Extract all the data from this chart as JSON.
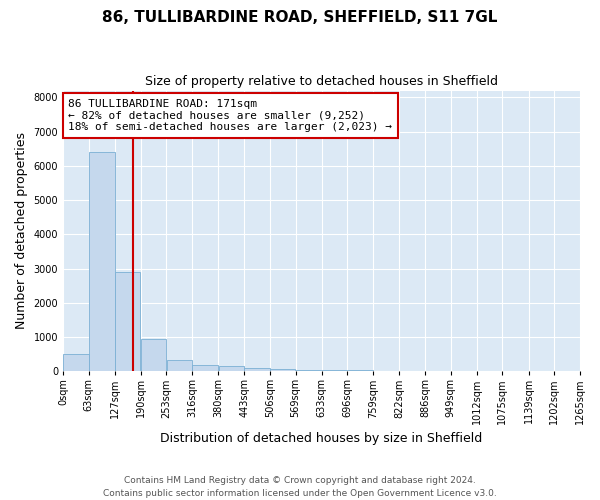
{
  "title": "86, TULLIBARDINE ROAD, SHEFFIELD, S11 7GL",
  "subtitle": "Size of property relative to detached houses in Sheffield",
  "xlabel": "Distribution of detached houses by size in Sheffield",
  "ylabel": "Number of detached properties",
  "bin_labels": [
    "0sqm",
    "63sqm",
    "127sqm",
    "190sqm",
    "253sqm",
    "316sqm",
    "380sqm",
    "443sqm",
    "506sqm",
    "569sqm",
    "633sqm",
    "696sqm",
    "759sqm",
    "822sqm",
    "886sqm",
    "949sqm",
    "1012sqm",
    "1075sqm",
    "1139sqm",
    "1202sqm",
    "1265sqm"
  ],
  "bin_edges": [
    0,
    63,
    127,
    190,
    253,
    316,
    380,
    443,
    506,
    569,
    633,
    696,
    759,
    822,
    886,
    949,
    1012,
    1075,
    1139,
    1202,
    1265
  ],
  "bar_heights": [
    500,
    6400,
    2900,
    950,
    340,
    195,
    145,
    95,
    65,
    50,
    38,
    28,
    20,
    14,
    10,
    7,
    5,
    3,
    2,
    1
  ],
  "bar_color": "#c5d8ed",
  "bar_edge_color": "#7bafd4",
  "property_size": 171,
  "vline_color": "#cc0000",
  "vline_x": 171,
  "annotation_line1": "86 TULLIBARDINE ROAD: 171sqm",
  "annotation_line2": "← 82% of detached houses are smaller (9,252)",
  "annotation_line3": "18% of semi-detached houses are larger (2,023) →",
  "annotation_box_color": "#cc0000",
  "annotation_fill": "#ffffff",
  "ylim": [
    0,
    8200
  ],
  "yticks": [
    0,
    1000,
    2000,
    3000,
    4000,
    5000,
    6000,
    7000,
    8000
  ],
  "background_color": "#dce9f5",
  "footer_line1": "Contains HM Land Registry data © Crown copyright and database right 2024.",
  "footer_line2": "Contains public sector information licensed under the Open Government Licence v3.0.",
  "title_fontsize": 11,
  "subtitle_fontsize": 9,
  "axis_label_fontsize": 9,
  "tick_fontsize": 7,
  "annotation_fontsize": 8
}
